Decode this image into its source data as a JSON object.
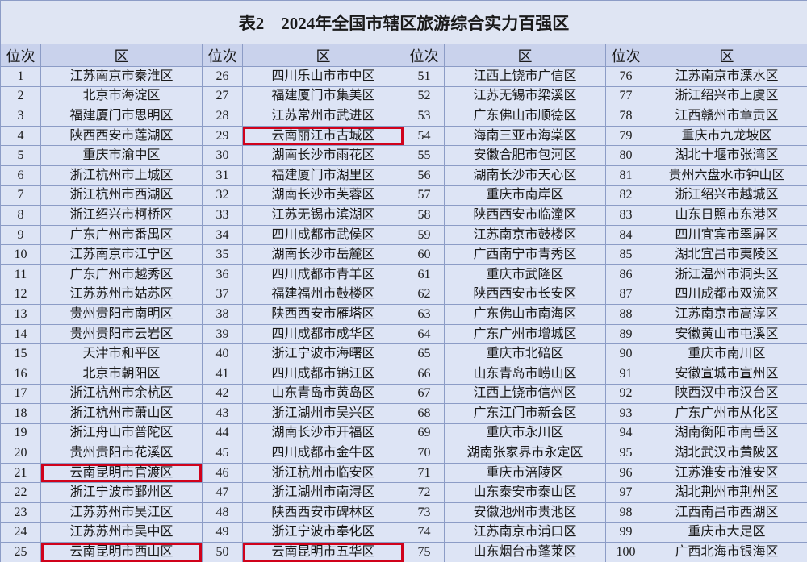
{
  "header": {
    "title": "表2    2024年全国市辖区旅游综合实力百强区"
  },
  "table": {
    "columns": [
      "位次",
      "区",
      "位次",
      "区",
      "位次",
      "区",
      "位次",
      "区"
    ],
    "highlighted": [
      21,
      25,
      29,
      50
    ],
    "highlight_color": "#d0021b",
    "rows": [
      [
        1,
        "江苏南京市秦淮区",
        26,
        "四川乐山市市中区",
        51,
        "江西上饶市广信区",
        76,
        "江苏南京市溧水区"
      ],
      [
        2,
        "北京市海淀区",
        27,
        "福建厦门市集美区",
        52,
        "江苏无锡市梁溪区",
        77,
        "浙江绍兴市上虞区"
      ],
      [
        3,
        "福建厦门市思明区",
        28,
        "江苏常州市武进区",
        53,
        "广东佛山市顺德区",
        78,
        "江西赣州市章贡区"
      ],
      [
        4,
        "陕西西安市莲湖区",
        29,
        "云南丽江市古城区",
        54,
        "海南三亚市海棠区",
        79,
        "重庆市九龙坡区"
      ],
      [
        5,
        "重庆市渝中区",
        30,
        "湖南长沙市雨花区",
        55,
        "安徽合肥市包河区",
        80,
        "湖北十堰市张湾区"
      ],
      [
        6,
        "浙江杭州市上城区",
        31,
        "福建厦门市湖里区",
        56,
        "湖南长沙市天心区",
        81,
        "贵州六盘水市钟山区"
      ],
      [
        7,
        "浙江杭州市西湖区",
        32,
        "湖南长沙市芙蓉区",
        57,
        "重庆市南岸区",
        82,
        "浙江绍兴市越城区"
      ],
      [
        8,
        "浙江绍兴市柯桥区",
        33,
        "江苏无锡市滨湖区",
        58,
        "陕西西安市临潼区",
        83,
        "山东日照市东港区"
      ],
      [
        9,
        "广东广州市番禺区",
        34,
        "四川成都市武侯区",
        59,
        "江苏南京市鼓楼区",
        84,
        "四川宜宾市翠屏区"
      ],
      [
        10,
        "江苏南京市江宁区",
        35,
        "湖南长沙市岳麓区",
        60,
        "广西南宁市青秀区",
        85,
        "湖北宜昌市夷陵区"
      ],
      [
        11,
        "广东广州市越秀区",
        36,
        "四川成都市青羊区",
        61,
        "重庆市武隆区",
        86,
        "浙江温州市洞头区"
      ],
      [
        12,
        "江苏苏州市姑苏区",
        37,
        "福建福州市鼓楼区",
        62,
        "陕西西安市长安区",
        87,
        "四川成都市双流区"
      ],
      [
        13,
        "贵州贵阳市南明区",
        38,
        "陕西西安市雁塔区",
        63,
        "广东佛山市南海区",
        88,
        "江苏南京市高淳区"
      ],
      [
        14,
        "贵州贵阳市云岩区",
        39,
        "四川成都市成华区",
        64,
        "广东广州市增城区",
        89,
        "安徽黄山市屯溪区"
      ],
      [
        15,
        "天津市和平区",
        40,
        "浙江宁波市海曙区",
        65,
        "重庆市北碚区",
        90,
        "重庆市南川区"
      ],
      [
        16,
        "北京市朝阳区",
        41,
        "四川成都市锦江区",
        66,
        "山东青岛市崂山区",
        91,
        "安徽宣城市宣州区"
      ],
      [
        17,
        "浙江杭州市余杭区",
        42,
        "山东青岛市黄岛区",
        67,
        "江西上饶市信州区",
        92,
        "陕西汉中市汉台区"
      ],
      [
        18,
        "浙江杭州市萧山区",
        43,
        "浙江湖州市吴兴区",
        68,
        "广东江门市新会区",
        93,
        "广东广州市从化区"
      ],
      [
        19,
        "浙江舟山市普陀区",
        44,
        "湖南长沙市开福区",
        69,
        "重庆市永川区",
        94,
        "湖南衡阳市南岳区"
      ],
      [
        20,
        "贵州贵阳市花溪区",
        45,
        "四川成都市金牛区",
        70,
        "湖南张家界市永定区",
        95,
        "湖北武汉市黄陂区"
      ],
      [
        21,
        "云南昆明市官渡区",
        46,
        "浙江杭州市临安区",
        71,
        "重庆市涪陵区",
        96,
        "江苏淮安市淮安区"
      ],
      [
        22,
        "浙江宁波市鄞州区",
        47,
        "浙江湖州市南浔区",
        72,
        "山东泰安市泰山区",
        97,
        "湖北荆州市荆州区"
      ],
      [
        23,
        "江苏苏州市吴江区",
        48,
        "陕西西安市碑林区",
        73,
        "安徽池州市贵池区",
        98,
        "江西南昌市西湖区"
      ],
      [
        24,
        "江苏苏州市吴中区",
        49,
        "浙江宁波市奉化区",
        74,
        "江苏南京市浦口区",
        99,
        "重庆市大足区"
      ],
      [
        25,
        "云南昆明市西山区",
        50,
        "云南昆明市五华区",
        75,
        "山东烟台市蓬莱区",
        100,
        "广西北海市银海区"
      ]
    ]
  }
}
